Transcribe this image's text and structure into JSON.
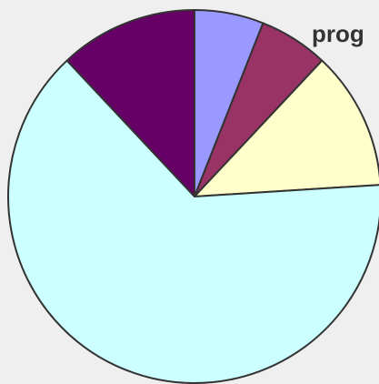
{
  "chart_data": {
    "type": "pie",
    "title": "prog",
    "values": [
      6,
      6,
      12,
      64,
      12
    ],
    "colors": [
      "#9999ff",
      "#993366",
      "#ffffcc",
      "#ccffff",
      "#660066"
    ]
  }
}
